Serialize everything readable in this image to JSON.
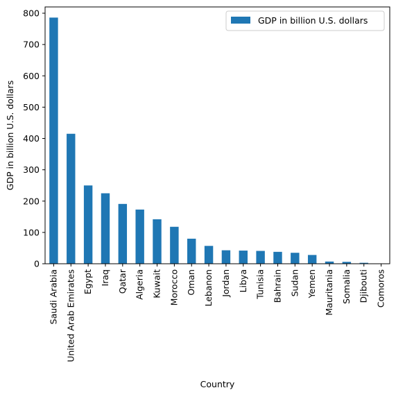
{
  "chart_data": {
    "type": "bar",
    "xlabel": "Country",
    "ylabel": "GDP in billion U.S. dollars",
    "categories": [
      "Saudi Arabia",
      "United Arab Emirates",
      "Egypt",
      "Iraq",
      "Qatar",
      "Algeria",
      "Kuwait",
      "Morocco",
      "Oman",
      "Lebanon",
      "Jordan",
      "Libya",
      "Tunisia",
      "Bahrain",
      "Sudan",
      "Yemen",
      "Mauritania",
      "Somalia",
      "Djibouti",
      "Comoros"
    ],
    "series": [
      {
        "name": "GDP in billion U.S. dollars",
        "color": "#1f77b4",
        "values": [
          786,
          415,
          250,
          225,
          191,
          173,
          142,
          118,
          80,
          57,
          43,
          42,
          41,
          38,
          35,
          28,
          7,
          6,
          3,
          1
        ]
      }
    ],
    "ylim": [
      0,
      820
    ],
    "yticks": [
      0,
      100,
      200,
      300,
      400,
      500,
      600,
      700,
      800
    ],
    "grid": false,
    "legend": {
      "position": "top-right",
      "entries": [
        "GDP in billion U.S. dollars"
      ]
    }
  }
}
